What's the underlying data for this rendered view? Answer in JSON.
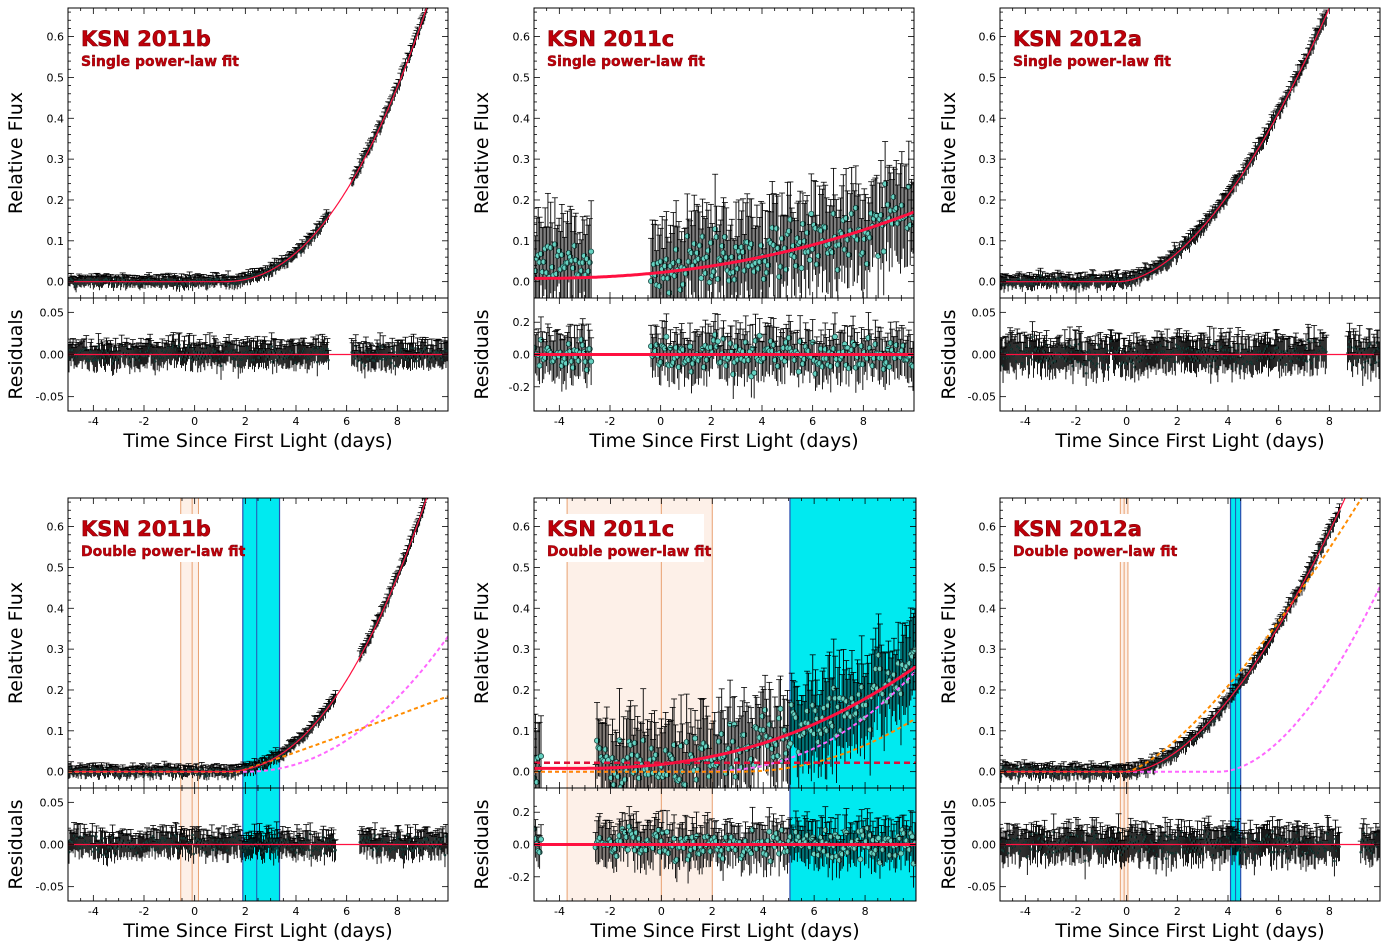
{
  "chart_data": [
    {
      "type": "scatter",
      "title": "KSN 2011b",
      "subtitle": "Single power-law fit",
      "xlabel": "Time Since First Light (days)",
      "ylabel": "Relative Flux",
      "reslabel": "Residuals",
      "xlim": [
        -5,
        10
      ],
      "ylim": [
        -0.04,
        0.67
      ],
      "rlim": [
        -0.067,
        0.067
      ],
      "xticks": [
        -4,
        -2,
        0,
        2,
        4,
        6,
        8
      ],
      "yticks": [
        0.0,
        0.1,
        0.2,
        0.3,
        0.4,
        0.5,
        0.6
      ],
      "rticks": [
        -0.05,
        0.0,
        0.05
      ],
      "rtick_labels": [
        "-0.05",
        "0.00",
        "0.05"
      ],
      "t0": 1.1,
      "amp": 0.0068,
      "index": 2.2,
      "gaps": [
        [
          5.3,
          6.2
        ]
      ],
      "noise": 0.011,
      "res_noise": 0.012,
      "marker": "small",
      "band_orange": [],
      "band_cyan": []
    },
    {
      "type": "scatter",
      "title": "KSN 2011c",
      "subtitle": "Single power-law fit",
      "xlabel": "Time Since First Light (days)",
      "ylabel": "Relative Flux",
      "reslabel": "Residuals",
      "xlim": [
        -5,
        10
      ],
      "ylim": [
        -0.04,
        0.67
      ],
      "rlim": [
        -0.35,
        0.35
      ],
      "xticks": [
        -4,
        -2,
        0,
        2,
        4,
        6,
        8
      ],
      "yticks": [
        0.0,
        0.1,
        0.2,
        0.3,
        0.4,
        0.5,
        0.6
      ],
      "rticks": [
        -0.2,
        0.0,
        0.2
      ],
      "rtick_labels": [
        "-0.2",
        "0.0",
        "0.2"
      ],
      "t0": -5.0,
      "amp": 0.00042,
      "index": 2.2,
      "offset": 0.008,
      "gaps": [
        [
          -2.7,
          -0.4
        ]
      ],
      "noise": 0.09,
      "res_noise": 0.12,
      "marker": "big",
      "band_orange": [],
      "band_cyan": []
    },
    {
      "type": "scatter",
      "title": "KSN 2012a",
      "subtitle": "Single power-law fit",
      "xlabel": "Time Since First Light (days)",
      "ylabel": "Relative Flux",
      "reslabel": "Residuals",
      "xlim": [
        -5,
        10
      ],
      "ylim": [
        -0.04,
        0.67
      ],
      "rlim": [
        -0.067,
        0.067
      ],
      "xticks": [
        -4,
        -2,
        0,
        2,
        4,
        6,
        8
      ],
      "yticks": [
        0.0,
        0.1,
        0.2,
        0.3,
        0.4,
        0.5,
        0.6
      ],
      "rticks": [
        -0.05,
        0.0,
        0.05
      ],
      "rtick_labels": [
        "-0.05",
        "0.00",
        "0.05"
      ],
      "t0": -0.3,
      "amp": 0.0165,
      "index": 1.75,
      "gaps": [
        [
          7.9,
          8.7
        ]
      ],
      "noise": 0.013,
      "res_noise": 0.016,
      "marker": "small",
      "band_orange": [],
      "band_cyan": []
    },
    {
      "type": "scatter",
      "title": "KSN 2011b",
      "subtitle": "Double power-law fit",
      "xlabel": "Time Since First Light (days)",
      "ylabel": "Relative Flux",
      "reslabel": "Residuals",
      "xlim": [
        -5,
        10
      ],
      "ylim": [
        -0.04,
        0.67
      ],
      "rlim": [
        -0.067,
        0.067
      ],
      "xticks": [
        -4,
        -2,
        0,
        2,
        4,
        6,
        8
      ],
      "yticks": [
        0.0,
        0.1,
        0.2,
        0.3,
        0.4,
        0.5,
        0.6
      ],
      "rticks": [
        -0.05,
        0.0,
        0.05
      ],
      "rtick_labels": [
        "-0.05",
        "0.00",
        "0.05"
      ],
      "t0": 1.1,
      "amp": 0.0068,
      "index": 2.2,
      "gaps": [
        [
          5.6,
          6.5
        ]
      ],
      "noise": 0.011,
      "res_noise": 0.012,
      "marker": "small",
      "band_orange": [
        -0.55,
        0.15
      ],
      "band_orange_lines": [
        -0.55,
        -0.1,
        0.15
      ],
      "band_cyan": [
        1.9,
        3.35
      ],
      "band_cyan_lines": [
        2.45
      ],
      "comp1": {
        "t0": 2.0,
        "amp": 0.0042,
        "index": 2.1,
        "color": "#ff66ff"
      },
      "comp2": {
        "t0": 1.7,
        "amp": 0.02,
        "index": 1.05,
        "color": "#ff8c00"
      }
    },
    {
      "type": "scatter",
      "title": "KSN 2011c",
      "subtitle": "Double power-law fit",
      "xlabel": "Time Since First Light (days)",
      "ylabel": "Relative Flux",
      "reslabel": "Residuals",
      "xlim": [
        -5,
        10
      ],
      "ylim": [
        -0.04,
        0.67
      ],
      "rlim": [
        -0.35,
        0.35
      ],
      "xticks": [
        -4,
        -2,
        0,
        2,
        4,
        6,
        8
      ],
      "yticks": [
        0.0,
        0.1,
        0.2,
        0.3,
        0.4,
        0.5,
        0.6
      ],
      "rticks": [
        -0.2,
        0.0,
        0.2
      ],
      "rtick_labels": [
        "-0.2",
        "0.0",
        "0.2"
      ],
      "t0": -3.4,
      "amp": 0.00056,
      "index": 2.35,
      "offset": 0.008,
      "gaps": [
        [
          -4.7,
          -2.6
        ]
      ],
      "noise": 0.085,
      "res_noise": 0.11,
      "marker": "big",
      "band_orange": [
        -3.7,
        2.0
      ],
      "band_orange_lines": [
        -3.7,
        0.0,
        2.0
      ],
      "band_cyan": [
        5.05,
        10.0
      ],
      "band_cyan_lines": [],
      "comp1": {
        "t0": 1.5,
        "amp": 0.0018,
        "index": 2.3,
        "color": "#ff66ff"
      },
      "comp2": {
        "t0": 3.0,
        "amp": 0.0022,
        "index": 2.1,
        "color": "#ff8c00"
      }
    },
    {
      "type": "scatter",
      "title": "KSN 2012a",
      "subtitle": "Double power-law fit",
      "xlabel": "Time Since First Light (days)",
      "ylabel": "Relative Flux",
      "reslabel": "Residuals",
      "xlim": [
        -5,
        10
      ],
      "ylim": [
        -0.04,
        0.67
      ],
      "rlim": [
        -0.067,
        0.067
      ],
      "xticks": [
        -4,
        -2,
        0,
        2,
        4,
        6,
        8
      ],
      "yticks": [
        0.0,
        0.1,
        0.2,
        0.3,
        0.4,
        0.5,
        0.6
      ],
      "rticks": [
        -0.05,
        0.0,
        0.05
      ],
      "rtick_labels": [
        "-0.05",
        "0.00",
        "0.05"
      ],
      "t0": 0.1,
      "amp": 0.0168,
      "index": 1.72,
      "gaps": [
        [
          8.4,
          9.2
        ]
      ],
      "noise": 0.013,
      "res_noise": 0.016,
      "marker": "small",
      "band_orange": [
        -0.25,
        0.05
      ],
      "band_orange_lines": [
        -0.25,
        -0.1,
        0.05
      ],
      "band_cyan": [
        4.1,
        4.5
      ],
      "band_cyan_lines": [
        4.3
      ],
      "comp1": {
        "t0": 3.7,
        "amp": 0.0165,
        "index": 1.8,
        "color": "#ff66ff"
      },
      "comp2": {
        "t0": 0.0,
        "amp": 0.031,
        "index": 1.38,
        "color": "#ff8c00"
      }
    }
  ]
}
